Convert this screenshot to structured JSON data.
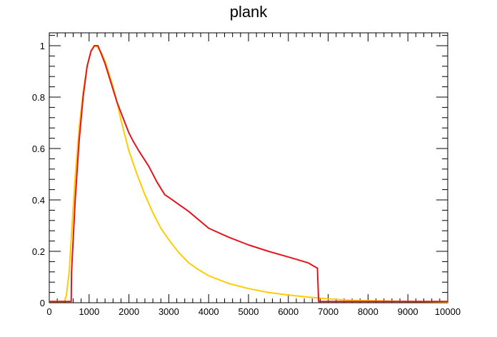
{
  "chart_data": {
    "type": "line",
    "title": "plank",
    "xlabel": "",
    "ylabel": "",
    "xlim": [
      0,
      10000
    ],
    "ylim": [
      0,
      1.05
    ],
    "x_ticks": [
      0,
      1000,
      2000,
      3000,
      4000,
      5000,
      6000,
      7000,
      8000,
      9000,
      10000
    ],
    "x_tick_labels": [
      "0",
      "1000",
      "2000",
      "3000",
      "4000",
      "5000",
      "6000",
      "7000",
      "8000",
      "9000",
      "10000"
    ],
    "y_ticks": [
      0,
      0.2,
      0.4,
      0.6,
      0.8,
      1
    ],
    "y_tick_labels": [
      "0",
      "0.2",
      "0.4",
      "0.6",
      "0.8",
      "1"
    ],
    "grid": false,
    "legend": "none",
    "series": [
      {
        "color": "#ffcc00",
        "x": [
          0,
          380,
          430,
          500,
          560,
          650,
          750,
          850,
          950,
          1050,
          1150,
          1200,
          1300,
          1400,
          1500,
          1600,
          1700,
          1800,
          1900,
          2000,
          2200,
          2400,
          2600,
          2800,
          3000,
          3250,
          3500,
          3750,
          4000,
          4500,
          5000,
          5500,
          6000,
          6500,
          7000,
          7500,
          8000,
          9000,
          10000
        ],
        "y": [
          0.005,
          0.005,
          0.03,
          0.12,
          0.27,
          0.49,
          0.68,
          0.82,
          0.92,
          0.98,
          1.0,
          0.995,
          0.975,
          0.94,
          0.89,
          0.84,
          0.78,
          0.71,
          0.65,
          0.59,
          0.5,
          0.42,
          0.35,
          0.29,
          0.245,
          0.195,
          0.155,
          0.128,
          0.105,
          0.075,
          0.055,
          0.04,
          0.03,
          0.022,
          0.015,
          0.01,
          0.008,
          0.005,
          0.003
        ]
      },
      {
        "color": "#e8141c",
        "x": [
          0,
          550,
          560,
          650,
          750,
          850,
          950,
          1050,
          1130,
          1220,
          1300,
          1400,
          1500,
          1600,
          1700,
          1800,
          1900,
          2000,
          2100,
          2250,
          2500,
          2700,
          2900,
          3000,
          3500,
          4000,
          4500,
          5000,
          5500,
          6000,
          6500,
          6720,
          6730,
          6760,
          10000
        ],
        "y": [
          0.005,
          0.005,
          0.12,
          0.4,
          0.63,
          0.8,
          0.92,
          0.98,
          1.0,
          1.0,
          0.97,
          0.93,
          0.88,
          0.83,
          0.78,
          0.74,
          0.7,
          0.66,
          0.63,
          0.59,
          0.53,
          0.47,
          0.42,
          0.41,
          0.355,
          0.29,
          0.255,
          0.225,
          0.2,
          0.178,
          0.155,
          0.135,
          0.135,
          0.005,
          0.005
        ]
      }
    ]
  }
}
